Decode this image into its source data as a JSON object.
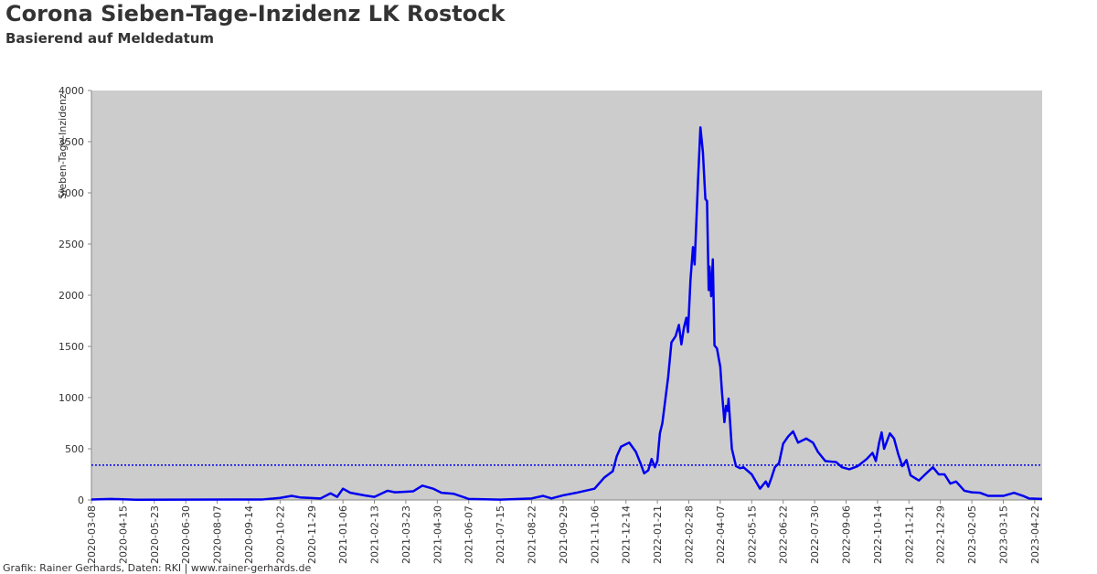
{
  "chart_data": {
    "type": "line",
    "title": "Corona Sieben-Tage-Inzidenz LK Rostock",
    "subtitle": "Basierend auf Meldedatum",
    "y_label": "Sieben-Tage-Inzidenz",
    "footer": "Grafik: Rainer Gerhards, Daten: RKI | www.rainer-gerhards.de",
    "color": "#0000ee",
    "background": "#cccccc",
    "reference_line": 340,
    "x": [
      "2020-03-08",
      "2020-04-01",
      "2020-05-01",
      "2020-10-01",
      "2020-10-22",
      "2020-11-05",
      "2020-11-15",
      "2020-12-10",
      "2020-12-22",
      "2020-12-30",
      "2021-01-06",
      "2021-01-15",
      "2021-02-01",
      "2021-02-13",
      "2021-03-01",
      "2021-03-10",
      "2021-03-23",
      "2021-04-01",
      "2021-04-12",
      "2021-04-25",
      "2021-05-05",
      "2021-05-20",
      "2021-06-07",
      "2021-07-15",
      "2021-08-22",
      "2021-09-05",
      "2021-09-15",
      "2021-09-29",
      "2021-10-15",
      "2021-11-06",
      "2021-11-18",
      "2021-11-28",
      "2021-12-03",
      "2021-12-08",
      "2021-12-14",
      "2021-12-18",
      "2021-12-26",
      "2022-01-01",
      "2022-01-05",
      "2022-01-10",
      "2022-01-14",
      "2022-01-18",
      "2022-01-21",
      "2022-01-24",
      "2022-01-27",
      "2022-02-03",
      "2022-02-07",
      "2022-02-12",
      "2022-02-16",
      "2022-02-19",
      "2022-02-22",
      "2022-02-25",
      "2022-02-27",
      "2022-03-02",
      "2022-03-05",
      "2022-03-07",
      "2022-03-11",
      "2022-03-14",
      "2022-03-17",
      "2022-03-20",
      "2022-03-22",
      "2022-03-24",
      "2022-03-25",
      "2022-03-27",
      "2022-03-29",
      "2022-03-31",
      "2022-04-03",
      "2022-04-07",
      "2022-04-09",
      "2022-04-12",
      "2022-04-14",
      "2022-04-16",
      "2022-04-17",
      "2022-04-21",
      "2022-04-26",
      "2022-05-01",
      "2022-05-05",
      "2022-05-15",
      "2022-05-25",
      "2022-06-01",
      "2022-06-04",
      "2022-06-08",
      "2022-06-12",
      "2022-06-17",
      "2022-06-22",
      "2022-06-28",
      "2022-07-04",
      "2022-07-10",
      "2022-07-20",
      "2022-07-28",
      "2022-08-03",
      "2022-08-12",
      "2022-08-25",
      "2022-09-01",
      "2022-09-10",
      "2022-09-20",
      "2022-10-01",
      "2022-10-08",
      "2022-10-12",
      "2022-10-16",
      "2022-10-19",
      "2022-10-22",
      "2022-10-29",
      "2022-11-03",
      "2022-11-08",
      "2022-11-13",
      "2022-11-18",
      "2022-11-23",
      "2022-12-03",
      "2022-12-12",
      "2022-12-20",
      "2022-12-27",
      "2023-01-03",
      "2023-01-10",
      "2023-01-17",
      "2023-01-27",
      "2023-02-05",
      "2023-02-15",
      "2023-02-25",
      "2023-03-15",
      "2023-03-28",
      "2023-04-08",
      "2023-04-15",
      "2023-05-01"
    ],
    "values": [
      5,
      10,
      2,
      5,
      20,
      40,
      25,
      15,
      65,
      30,
      110,
      70,
      45,
      30,
      90,
      75,
      80,
      85,
      140,
      110,
      70,
      60,
      10,
      3,
      15,
      40,
      15,
      45,
      70,
      110,
      220,
      280,
      430,
      520,
      545,
      560,
      470,
      350,
      260,
      290,
      400,
      320,
      380,
      650,
      750,
      1200,
      1540,
      1600,
      1710,
      1520,
      1680,
      1780,
      1640,
      2150,
      2470,
      2300,
      3100,
      3640,
      3400,
      2940,
      2920,
      2050,
      2280,
      1990,
      2350,
      1510,
      1480,
      1300,
      1060,
      760,
      920,
      870,
      990,
      500,
      330,
      310,
      320,
      250,
      110,
      180,
      130,
      220,
      320,
      360,
      550,
      620,
      670,
      560,
      600,
      560,
      470,
      380,
      370,
      320,
      300,
      330,
      400,
      460,
      380,
      560,
      660,
      500,
      650,
      600,
      450,
      330,
      390,
      240,
      190,
      260,
      320,
      250,
      250,
      160,
      180,
      90,
      75,
      70,
      40,
      40,
      70,
      40,
      15,
      10
    ],
    "xlim": [
      "2020-03-08",
      "2023-05-01"
    ],
    "xticks": [
      "2020-03-08",
      "2020-04-15",
      "2020-05-23",
      "2020-06-30",
      "2020-08-07",
      "2020-09-14",
      "2020-10-22",
      "2020-11-29",
      "2021-01-06",
      "2021-02-13",
      "2021-03-23",
      "2021-04-30",
      "2021-06-07",
      "2021-07-15",
      "2021-08-22",
      "2021-09-29",
      "2021-11-06",
      "2021-12-14",
      "2022-01-21",
      "2022-02-28",
      "2022-04-07",
      "2022-05-15",
      "2022-06-22",
      "2022-07-30",
      "2022-09-06",
      "2022-10-14",
      "2022-11-21",
      "2022-12-29",
      "2023-02-05",
      "2023-03-15",
      "2023-04-22"
    ],
    "ylim": [
      0,
      4000
    ],
    "yticks": [
      0,
      500,
      1000,
      1500,
      2000,
      2500,
      3000,
      3500,
      4000
    ]
  }
}
